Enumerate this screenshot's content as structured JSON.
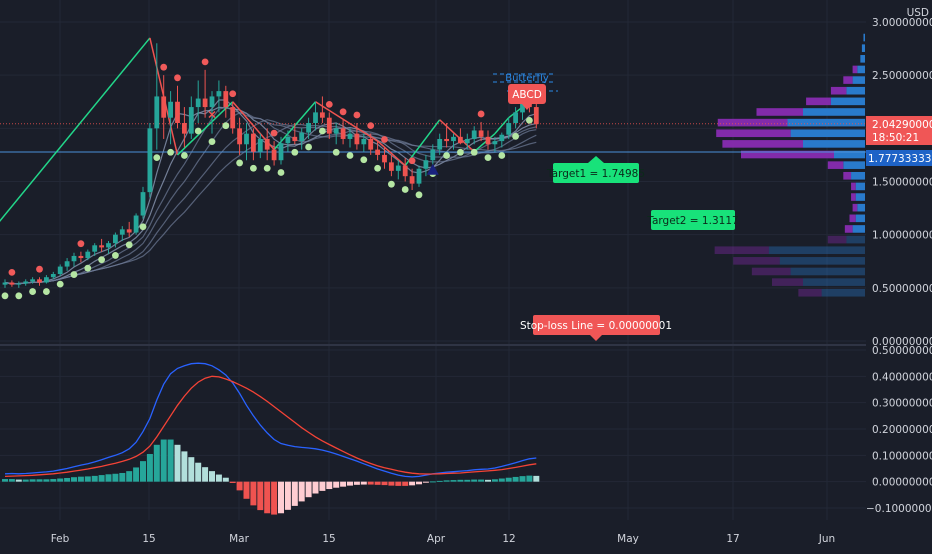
{
  "colors": {
    "background": "#1a1e29",
    "bull": "#26a69a",
    "bear": "#ef5350",
    "zigzag_up": "#22d68a",
    "zigzag_down": "#ef5350",
    "dots_green": "#b5e6a3",
    "dots_red": "#f05a5a",
    "price_line": "#4a90d9",
    "volume_blue": "#2a7fd4",
    "volume_purple": "#8e2cb8",
    "macd_line": "#2962ff",
    "signal_line": "#f44336",
    "hist_teal": "#26a69a",
    "hist_pale_teal": "#b2dfdb",
    "hist_red": "#ef5350",
    "hist_pale_red": "#ffcdd2",
    "label_green": "#18e27a",
    "label_red": "#f05656",
    "pattern_blue": "#2b8ae8"
  },
  "axis": {
    "currency": "USD",
    "price_ticks": [
      "3.00000000",
      "2.50000000",
      "2.00000000",
      "1.50000000",
      "1.00000000",
      "0.50000000",
      "0.00000000"
    ],
    "macd_ticks": [
      "0.50000000",
      "0.40000000",
      "0.30000000",
      "0.20000000",
      "0.10000000",
      "0.00000000",
      "−0.10000000"
    ],
    "time_labels": [
      "Feb",
      "15",
      "Mar",
      "15",
      "Apr",
      "12",
      "May",
      "17",
      "Jun"
    ]
  },
  "price_badges": {
    "last_price": "2.04290000",
    "countdown": "18:50:21",
    "level_price": "1.77733333"
  },
  "annotations": {
    "target1": "Target1 = 1.74985",
    "target2": "Target2 = 1.3117",
    "stop_loss": "Stop-loss Line = 0.00000001",
    "pattern_abcd": "ABCD",
    "pattern_butterfly": "Butterfly"
  },
  "chart_data": {
    "type": "candlestick",
    "series": [
      {
        "name": "price",
        "start": "Jan 26",
        "interval": "1 day",
        "ohlc": [
          [
            0.53,
            0.58,
            0.5,
            0.55
          ],
          [
            0.55,
            0.57,
            0.51,
            0.53
          ],
          [
            0.53,
            0.56,
            0.5,
            0.54
          ],
          [
            0.54,
            0.58,
            0.52,
            0.56
          ],
          [
            0.56,
            0.6,
            0.54,
            0.58
          ],
          [
            0.58,
            0.6,
            0.52,
            0.55
          ],
          [
            0.55,
            0.62,
            0.54,
            0.6
          ],
          [
            0.6,
            0.65,
            0.58,
            0.63
          ],
          [
            0.63,
            0.72,
            0.61,
            0.7
          ],
          [
            0.7,
            0.78,
            0.66,
            0.75
          ],
          [
            0.75,
            0.83,
            0.7,
            0.8
          ],
          [
            0.8,
            0.84,
            0.74,
            0.78
          ],
          [
            0.78,
            0.86,
            0.76,
            0.84
          ],
          [
            0.84,
            0.92,
            0.8,
            0.9
          ],
          [
            0.9,
            0.96,
            0.84,
            0.88
          ],
          [
            0.88,
            0.94,
            0.82,
            0.92
          ],
          [
            0.92,
            1.02,
            0.88,
            1.0
          ],
          [
            1.0,
            1.08,
            0.94,
            1.05
          ],
          [
            1.05,
            1.12,
            0.98,
            1.02
          ],
          [
            1.02,
            1.2,
            1.0,
            1.18
          ],
          [
            1.18,
            1.45,
            1.15,
            1.4
          ],
          [
            1.4,
            2.05,
            1.35,
            2.0
          ],
          [
            2.0,
            2.8,
            1.8,
            2.3
          ],
          [
            2.3,
            2.5,
            1.9,
            2.1
          ],
          [
            2.1,
            2.35,
            1.85,
            2.25
          ],
          [
            2.25,
            2.4,
            2.0,
            2.05
          ],
          [
            2.05,
            2.2,
            1.82,
            1.95
          ],
          [
            1.95,
            2.3,
            1.9,
            2.2
          ],
          [
            2.2,
            2.45,
            2.05,
            2.28
          ],
          [
            2.28,
            2.55,
            2.1,
            2.2
          ],
          [
            2.2,
            2.35,
            1.95,
            2.3
          ],
          [
            2.3,
            2.45,
            2.15,
            2.35
          ],
          [
            2.35,
            2.4,
            2.1,
            2.2
          ],
          [
            2.2,
            2.25,
            1.95,
            2.0
          ],
          [
            2.0,
            2.1,
            1.75,
            1.85
          ],
          [
            1.85,
            2.05,
            1.7,
            1.95
          ],
          [
            1.95,
            2.0,
            1.7,
            1.78
          ],
          [
            1.78,
            1.95,
            1.72,
            1.9
          ],
          [
            1.9,
            2.0,
            1.7,
            1.8
          ],
          [
            1.8,
            1.88,
            1.65,
            1.7
          ],
          [
            1.7,
            1.92,
            1.66,
            1.86
          ],
          [
            1.86,
            1.98,
            1.78,
            1.92
          ],
          [
            1.92,
            2.05,
            1.85,
            1.88
          ],
          [
            1.88,
            2.0,
            1.8,
            1.96
          ],
          [
            1.96,
            2.1,
            1.9,
            2.05
          ],
          [
            2.05,
            2.25,
            1.98,
            2.15
          ],
          [
            2.15,
            2.3,
            2.05,
            2.1
          ],
          [
            2.1,
            2.15,
            1.9,
            1.95
          ],
          [
            1.95,
            2.05,
            1.85,
            2.0
          ],
          [
            2.0,
            2.08,
            1.85,
            1.9
          ],
          [
            1.9,
            2.0,
            1.82,
            1.95
          ],
          [
            1.95,
            2.05,
            1.8,
            1.85
          ],
          [
            1.85,
            1.95,
            1.78,
            1.9
          ],
          [
            1.9,
            1.95,
            1.75,
            1.8
          ],
          [
            1.8,
            1.88,
            1.7,
            1.75
          ],
          [
            1.75,
            1.82,
            1.62,
            1.68
          ],
          [
            1.68,
            1.75,
            1.55,
            1.6
          ],
          [
            1.6,
            1.7,
            1.52,
            1.65
          ],
          [
            1.65,
            1.72,
            1.5,
            1.55
          ],
          [
            1.55,
            1.62,
            1.42,
            1.48
          ],
          [
            1.48,
            1.65,
            1.45,
            1.62
          ],
          [
            1.62,
            1.75,
            1.55,
            1.7
          ],
          [
            1.7,
            1.85,
            1.65,
            1.8
          ],
          [
            1.8,
            1.95,
            1.75,
            1.9
          ],
          [
            1.9,
            2.05,
            1.82,
            1.88
          ],
          [
            1.88,
            1.95,
            1.8,
            1.92
          ],
          [
            1.92,
            2.0,
            1.85,
            1.86
          ],
          [
            1.86,
            1.95,
            1.8,
            1.9
          ],
          [
            1.9,
            2.02,
            1.85,
            1.98
          ],
          [
            1.98,
            2.06,
            1.88,
            1.92
          ],
          [
            1.92,
            1.98,
            1.8,
            1.85
          ],
          [
            1.85,
            1.92,
            1.78,
            1.88
          ],
          [
            1.88,
            1.96,
            1.82,
            1.94
          ],
          [
            1.94,
            2.1,
            1.9,
            2.05
          ],
          [
            2.05,
            2.2,
            2.0,
            2.15
          ],
          [
            2.15,
            2.3,
            2.08,
            2.25
          ],
          [
            2.25,
            2.38,
            2.15,
            2.2
          ],
          [
            2.2,
            2.25,
            2.0,
            2.04
          ]
        ]
      },
      {
        "name": "macd",
        "values": [
          0.03,
          0.031,
          0.03,
          0.031,
          0.033,
          0.035,
          0.037,
          0.04,
          0.045,
          0.05,
          0.057,
          0.063,
          0.068,
          0.075,
          0.083,
          0.092,
          0.1,
          0.11,
          0.125,
          0.15,
          0.19,
          0.24,
          0.31,
          0.37,
          0.41,
          0.43,
          0.44,
          0.448,
          0.45,
          0.448,
          0.44,
          0.425,
          0.405,
          0.375,
          0.335,
          0.29,
          0.25,
          0.215,
          0.185,
          0.16,
          0.145,
          0.138,
          0.133,
          0.13,
          0.128,
          0.125,
          0.12,
          0.113,
          0.105,
          0.096,
          0.087,
          0.078,
          0.068,
          0.058,
          0.048,
          0.04,
          0.032,
          0.025,
          0.02,
          0.018,
          0.02,
          0.025,
          0.03,
          0.033,
          0.036,
          0.038,
          0.04,
          0.042,
          0.045,
          0.047,
          0.048,
          0.052,
          0.058,
          0.065,
          0.072,
          0.08,
          0.087,
          0.09
        ]
      },
      {
        "name": "signal",
        "values": [
          0.02,
          0.021,
          0.022,
          0.023,
          0.024,
          0.026,
          0.028,
          0.03,
          0.033,
          0.036,
          0.04,
          0.044,
          0.048,
          0.053,
          0.058,
          0.064,
          0.07,
          0.077,
          0.085,
          0.096,
          0.112,
          0.135,
          0.17,
          0.21,
          0.25,
          0.29,
          0.325,
          0.355,
          0.378,
          0.393,
          0.4,
          0.398,
          0.39,
          0.38,
          0.368,
          0.355,
          0.34,
          0.323,
          0.305,
          0.285,
          0.265,
          0.245,
          0.225,
          0.205,
          0.187,
          0.17,
          0.155,
          0.141,
          0.128,
          0.115,
          0.102,
          0.09,
          0.079,
          0.069,
          0.06,
          0.053,
          0.047,
          0.041,
          0.036,
          0.032,
          0.03,
          0.029,
          0.029,
          0.03,
          0.031,
          0.032,
          0.033,
          0.035,
          0.037,
          0.039,
          0.041,
          0.043,
          0.046,
          0.05,
          0.054,
          0.059,
          0.064,
          0.068
        ]
      },
      {
        "name": "histogram",
        "values": [
          0.01,
          0.01,
          0.008,
          0.008,
          0.009,
          0.009,
          0.009,
          0.01,
          0.012,
          0.014,
          0.017,
          0.019,
          0.02,
          0.022,
          0.025,
          0.028,
          0.03,
          0.033,
          0.04,
          0.054,
          0.078,
          0.105,
          0.14,
          0.16,
          0.16,
          0.14,
          0.115,
          0.093,
          0.072,
          0.055,
          0.04,
          0.027,
          0.015,
          -0.005,
          -0.033,
          -0.065,
          -0.09,
          -0.108,
          -0.12,
          -0.125,
          -0.12,
          -0.107,
          -0.092,
          -0.075,
          -0.059,
          -0.045,
          -0.035,
          -0.028,
          -0.023,
          -0.019,
          -0.015,
          -0.012,
          -0.011,
          -0.011,
          -0.012,
          -0.013,
          -0.015,
          -0.016,
          -0.016,
          -0.014,
          -0.01,
          -0.004,
          0.001,
          0.003,
          0.005,
          0.006,
          0.007,
          0.007,
          0.008,
          0.008,
          0.007,
          0.009,
          0.012,
          0.015,
          0.018,
          0.021,
          0.023,
          0.022
        ]
      },
      {
        "name": "volume_profile_blue",
        "levels": [
          0.45,
          0.55,
          0.65,
          0.75,
          0.85,
          0.95,
          1.05,
          1.15,
          1.25,
          1.35,
          1.45,
          1.55,
          1.65,
          1.75,
          1.85,
          1.95,
          2.05,
          2.15,
          2.25,
          2.35,
          2.45,
          2.55,
          2.65,
          2.75,
          2.85
        ],
        "values": [
          28,
          40,
          48,
          55,
          62,
          12,
          8,
          6,
          5,
          6,
          6,
          9,
          14,
          20,
          40,
          48,
          50,
          40,
          22,
          12,
          8,
          5,
          3,
          2,
          1
        ]
      },
      {
        "name": "volume_profile_purple",
        "levels": [
          0.45,
          0.55,
          0.65,
          0.75,
          0.85,
          0.95,
          1.05,
          1.15,
          1.25,
          1.35,
          1.45,
          1.55,
          1.65,
          1.75,
          1.85,
          1.95,
          2.05,
          2.15,
          2.25,
          2.35,
          2.45,
          2.55,
          2.65,
          2.75,
          2.85
        ],
        "values": [
          15,
          20,
          25,
          30,
          35,
          12,
          5,
          4,
          3,
          3,
          3,
          5,
          10,
          60,
          52,
          48,
          45,
          30,
          16,
          10,
          6,
          3,
          0,
          0,
          0
        ]
      }
    ],
    "patterns": [
      {
        "name": "zigzag",
        "points": [
          [
            -3,
            0.95
          ],
          [
            21,
            2.85
          ],
          [
            25,
            1.75
          ],
          [
            33,
            2.25
          ],
          [
            39,
            1.8
          ],
          [
            45,
            2.25
          ],
          [
            54,
            1.88
          ],
          [
            58,
            1.65
          ],
          [
            63,
            2.08
          ],
          [
            68,
            1.78
          ],
          [
            71,
            1.95
          ],
          [
            73,
            2.1
          ],
          [
            77,
            2.3
          ]
        ]
      }
    ],
    "markers": {
      "triangle_up": [
        [
          62,
          1.61
        ]
      ],
      "cross": [
        [
          30,
          2.13
        ]
      ]
    },
    "levels": {
      "last_price": 2.0429,
      "level": 1.77733333,
      "target1": 1.74985,
      "target2": 1.3117,
      "stop_loss": 1e-08
    },
    "ylim_price": [
      0.0,
      3.0
    ],
    "ylim_macd": [
      -0.1,
      0.5
    ],
    "xlabel": "",
    "ylabel": ""
  }
}
